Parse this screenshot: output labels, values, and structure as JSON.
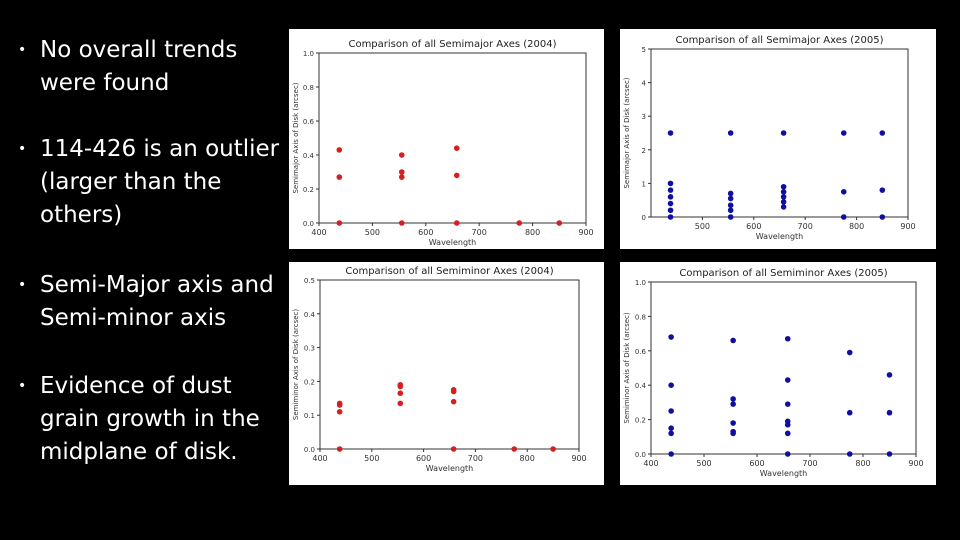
{
  "bullets": [
    "No overall trends\nwere found",
    "114-426 is an outlier\n(larger than the\nothers)",
    "Semi-Major axis and\nSemi-minor axis",
    "Evidence of dust\ngrain growth in the\nmidplane of disk."
  ],
  "bullet_symbol": "•",
  "chart_data": [
    {
      "type": "scatter",
      "title": "Comparison of all Semimajor Axes (2004)",
      "xlabel": "Wavelength",
      "ylabel": "Semimajor Axis of Disk (arcsec)",
      "xlim": [
        400,
        900
      ],
      "ylim": [
        0,
        1.0
      ],
      "xticks": [
        "400",
        "500",
        "600",
        "700",
        "800",
        "900"
      ],
      "yticks": [
        "0.0",
        "0.2",
        "0.4",
        "0.6",
        "0.8",
        "1.0"
      ],
      "color": "#d42020",
      "x": [
        438,
        438,
        438,
        555,
        555,
        555,
        555,
        658,
        658,
        658,
        775,
        850
      ],
      "y": [
        0.43,
        0.27,
        0.0,
        0.4,
        0.3,
        0.27,
        0.0,
        0.44,
        0.28,
        0.0,
        0.0,
        0.0
      ]
    },
    {
      "type": "scatter",
      "title": "Comparison of all Semimajor Axes (2005)",
      "xlabel": "Wavelength",
      "ylabel": "Semimajor Axis of Disk (arcsec)",
      "xlim": [
        400,
        900
      ],
      "ylim": [
        0,
        5
      ],
      "xticks": [
        "500",
        "600",
        "700",
        "800",
        "900"
      ],
      "yticks": [
        "0",
        "1",
        "2",
        "3",
        "4",
        "5"
      ],
      "color": "#1010a0",
      "x": [
        438,
        438,
        438,
        438,
        438,
        438,
        438,
        555,
        555,
        555,
        555,
        555,
        555,
        658,
        658,
        658,
        658,
        658,
        658,
        775,
        775,
        775,
        850,
        850,
        850
      ],
      "y": [
        2.5,
        1.0,
        0.8,
        0.6,
        0.4,
        0.2,
        0.0,
        2.5,
        0.7,
        0.55,
        0.35,
        0.2,
        0.0,
        2.5,
        0.9,
        0.75,
        0.6,
        0.45,
        0.3,
        2.5,
        0.75,
        0.0,
        2.5,
        0.8,
        0.0
      ]
    },
    {
      "type": "scatter",
      "title": "Comparison of all Semiminor Axes (2004)",
      "xlabel": "Wavelength",
      "ylabel": "Semiminor Axis of Disk (arcsec)",
      "xlim": [
        400,
        900
      ],
      "ylim": [
        0,
        0.5
      ],
      "xticks": [
        "400",
        "500",
        "600",
        "700",
        "800",
        "900"
      ],
      "yticks": [
        "0.0",
        "0.1",
        "0.2",
        "0.3",
        "0.4",
        "0.5"
      ],
      "color": "#d42020",
      "x": [
        438,
        438,
        438,
        438,
        555,
        555,
        555,
        555,
        658,
        658,
        658,
        658,
        775,
        850
      ],
      "y": [
        0.135,
        0.13,
        0.11,
        0.0,
        0.19,
        0.185,
        0.165,
        0.135,
        0.175,
        0.17,
        0.14,
        0.0,
        0.0,
        0.0
      ]
    },
    {
      "type": "scatter",
      "title": "Comparison of all Semiminor Axes (2005)",
      "xlabel": "Wavelength",
      "ylabel": "Semiminor Axis of Disk (arcsec)",
      "xlim": [
        400,
        900
      ],
      "ylim": [
        0,
        1.0
      ],
      "xticks": [
        "400",
        "500",
        "600",
        "700",
        "800",
        "900"
      ],
      "yticks": [
        "0.0",
        "0.2",
        "0.4",
        "0.6",
        "0.8",
        "1.0"
      ],
      "color": "#1010a0",
      "x": [
        438,
        438,
        438,
        438,
        438,
        438,
        555,
        555,
        555,
        555,
        555,
        555,
        658,
        658,
        658,
        658,
        658,
        658,
        658,
        775,
        775,
        775,
        850,
        850,
        850
      ],
      "y": [
        0.68,
        0.4,
        0.25,
        0.15,
        0.12,
        0.0,
        0.66,
        0.32,
        0.29,
        0.18,
        0.13,
        0.12,
        0.67,
        0.43,
        0.29,
        0.19,
        0.17,
        0.12,
        0.0,
        0.59,
        0.24,
        0.0,
        0.46,
        0.24,
        0.0
      ]
    }
  ]
}
